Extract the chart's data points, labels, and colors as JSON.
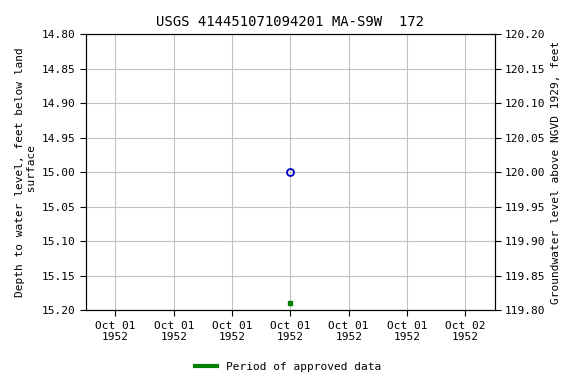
{
  "title": "USGS 414451071094201 MA-S9W  172",
  "ylabel_left": "Depth to water level, feet below land\n surface",
  "ylabel_right": "Groundwater level above NGVD 1929, feet",
  "ylim_left": [
    14.8,
    15.2
  ],
  "ylim_right": [
    119.8,
    120.2
  ],
  "yticks_left": [
    14.8,
    14.85,
    14.9,
    14.95,
    15.0,
    15.05,
    15.1,
    15.15,
    15.2
  ],
  "yticks_right": [
    119.8,
    119.85,
    119.9,
    119.95,
    120.0,
    120.05,
    120.1,
    120.15,
    120.2
  ],
  "data_point_open": {
    "date_num": 3,
    "depth": 15.0
  },
  "data_point_filled": {
    "date_num": 3,
    "depth": 15.19
  },
  "n_ticks": 7,
  "xtick_labels": [
    "Oct 01\n1952",
    "Oct 01\n1952",
    "Oct 01\n1952",
    "Oct 01\n1952",
    "Oct 01\n1952",
    "Oct 01\n1952",
    "Oct 02\n1952"
  ],
  "open_marker_color": "#0000cc",
  "filled_marker_color": "#008000",
  "legend_label": "Period of approved data",
  "legend_color": "#008000",
  "grid_color": "#c0c0c0",
  "bg_color": "#ffffff",
  "title_fontsize": 10,
  "label_fontsize": 8,
  "tick_fontsize": 8,
  "font_family": "DejaVu Sans Mono"
}
